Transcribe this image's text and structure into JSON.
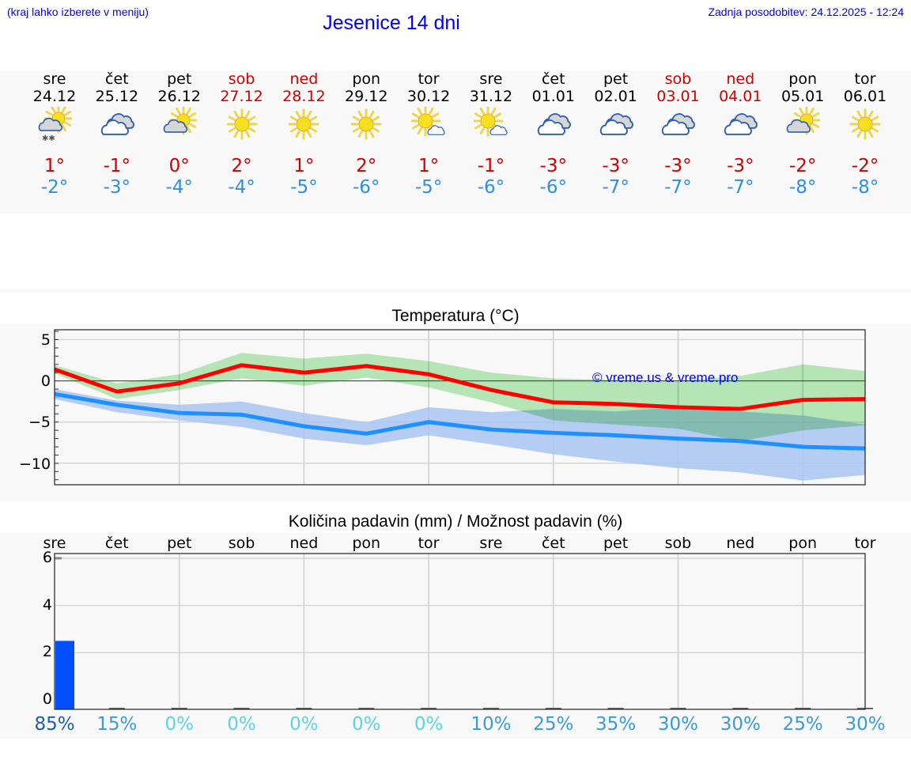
{
  "header": {
    "hint": "(kraj lahko izberete v meniju)",
    "title": "Jesenice 14 dni",
    "updated": "Zadnja posodobitev: 24.12.2025 - 12:24"
  },
  "forecast": {
    "days": [
      {
        "name": "sre",
        "date": "24.12",
        "icon": "partly-cloudy-snow-icon",
        "tmax": "1°",
        "tmin": "-2°",
        "weekend": false
      },
      {
        "name": "čet",
        "date": "25.12",
        "icon": "overcast-icon",
        "tmax": "-1°",
        "tmin": "-3°",
        "weekend": false
      },
      {
        "name": "pet",
        "date": "26.12",
        "icon": "partly-cloudy-icon",
        "tmax": "0°",
        "tmin": "-4°",
        "weekend": false
      },
      {
        "name": "sob",
        "date": "27.12",
        "icon": "sunny-icon",
        "tmax": "2°",
        "tmin": "-4°",
        "weekend": true
      },
      {
        "name": "ned",
        "date": "28.12",
        "icon": "sunny-icon",
        "tmax": "1°",
        "tmin": "-5°",
        "weekend": true
      },
      {
        "name": "pon",
        "date": "29.12",
        "icon": "sunny-icon",
        "tmax": "2°",
        "tmin": "-6°",
        "weekend": false
      },
      {
        "name": "tor",
        "date": "30.12",
        "icon": "mostly-sunny-icon",
        "tmax": "1°",
        "tmin": "-5°",
        "weekend": false
      },
      {
        "name": "sre",
        "date": "31.12",
        "icon": "mostly-sunny-icon",
        "tmax": "-1°",
        "tmin": "-6°",
        "weekend": false
      },
      {
        "name": "čet",
        "date": "01.01",
        "icon": "overcast-icon",
        "tmax": "-3°",
        "tmin": "-6°",
        "weekend": false
      },
      {
        "name": "pet",
        "date": "02.01",
        "icon": "overcast-icon",
        "tmax": "-3°",
        "tmin": "-7°",
        "weekend": false
      },
      {
        "name": "sob",
        "date": "03.01",
        "icon": "overcast-icon",
        "tmax": "-3°",
        "tmin": "-7°",
        "weekend": true
      },
      {
        "name": "ned",
        "date": "04.01",
        "icon": "overcast-icon",
        "tmax": "-3°",
        "tmin": "-7°",
        "weekend": true
      },
      {
        "name": "pon",
        "date": "05.01",
        "icon": "partly-cloudy-icon",
        "tmax": "-2°",
        "tmin": "-8°",
        "weekend": false
      },
      {
        "name": "tor",
        "date": "06.01",
        "icon": "sunny-icon",
        "tmax": "-2°",
        "tmin": "-8°",
        "weekend": false
      }
    ]
  },
  "colors": {
    "link": "#0000ee",
    "weekend": "#cc0000",
    "tmax_text": "#cc0000",
    "tmin_text": "#2b8fe6",
    "tmax_line": "#ff0000",
    "tmin_line": "#1e90ff",
    "tmax_band": "#aee8ae",
    "tmin_band": "#a9c4f2",
    "precip_bar": "#0050ff",
    "pct_high": "#1a5ea8",
    "pct_mid": "#3a9ad9",
    "pct_zero": "#5bd3e6"
  },
  "chart_data": [
    {
      "type": "line",
      "title": "Temperatura (°C)",
      "xlabel": "",
      "ylabel": "",
      "watermark": "© vreme.us & vreme.pro",
      "ylim": [
        -12.6,
        6.2
      ],
      "yticks": [
        5,
        0,
        -5,
        -10
      ],
      "ytick_labels": [
        "5",
        "0",
        "−5",
        "−10"
      ],
      "grid": true,
      "categories": [
        "24.12",
        "25.12",
        "26.12",
        "27.12",
        "28.12",
        "29.12",
        "30.12",
        "31.12",
        "01.01",
        "02.01",
        "03.01",
        "04.01",
        "05.01",
        "06.01"
      ],
      "series": [
        {
          "name": "Tmax",
          "values": [
            1.4,
            -1.3,
            -0.3,
            1.9,
            1.0,
            1.8,
            0.8,
            -1.1,
            -2.6,
            -2.8,
            -3.2,
            -3.4,
            -2.3,
            -2.2
          ]
        },
        {
          "name": "Tmax band low",
          "values": [
            0.9,
            -2.2,
            -1.1,
            0.3,
            -0.6,
            0.4,
            -0.8,
            -2.6,
            -4.8,
            -5.3,
            -5.8,
            -7.3,
            -6.0,
            -5.4
          ]
        },
        {
          "name": "Tmax band high",
          "values": [
            1.9,
            -0.3,
            0.8,
            3.4,
            2.7,
            3.3,
            2.4,
            1.0,
            0.3,
            0.1,
            0.0,
            0.6,
            2.0,
            1.2
          ]
        },
        {
          "name": "Tmin",
          "values": [
            -1.6,
            -2.9,
            -3.9,
            -4.1,
            -5.5,
            -6.4,
            -5.0,
            -5.9,
            -6.3,
            -6.6,
            -7.0,
            -7.3,
            -8.0,
            -8.2
          ]
        },
        {
          "name": "Tmin band low",
          "values": [
            -2.2,
            -3.8,
            -4.8,
            -5.6,
            -7.0,
            -7.8,
            -6.6,
            -7.7,
            -8.9,
            -9.8,
            -10.6,
            -11.1,
            -12.1,
            -11.4
          ]
        },
        {
          "name": "Tmin band high",
          "values": [
            -1.0,
            -2.4,
            -2.9,
            -2.5,
            -3.9,
            -5.0,
            -3.2,
            -3.8,
            -3.4,
            -3.7,
            -3.2,
            -3.7,
            -4.2,
            -5.3
          ]
        }
      ]
    },
    {
      "type": "bar",
      "title": "Količina padavin (mm) / Možnost padavin (%)",
      "xlabel": "",
      "ylabel": "",
      "ylim": [
        -0.4,
        6.2
      ],
      "yticks": [
        0,
        2,
        4,
        6
      ],
      "grid": true,
      "categories": [
        "sre",
        "čet",
        "pet",
        "sob",
        "ned",
        "pon",
        "tor",
        "sre",
        "čet",
        "pet",
        "sob",
        "ned",
        "pon",
        "tor"
      ],
      "values": [
        2.5,
        0,
        0,
        0,
        0,
        0,
        0,
        0,
        0,
        0,
        0,
        0,
        0,
        0
      ],
      "probability_pct": [
        "85%",
        "15%",
        "0%",
        "0%",
        "0%",
        "0%",
        "0%",
        "10%",
        "25%",
        "35%",
        "30%",
        "30%",
        "25%",
        "30%"
      ]
    }
  ]
}
